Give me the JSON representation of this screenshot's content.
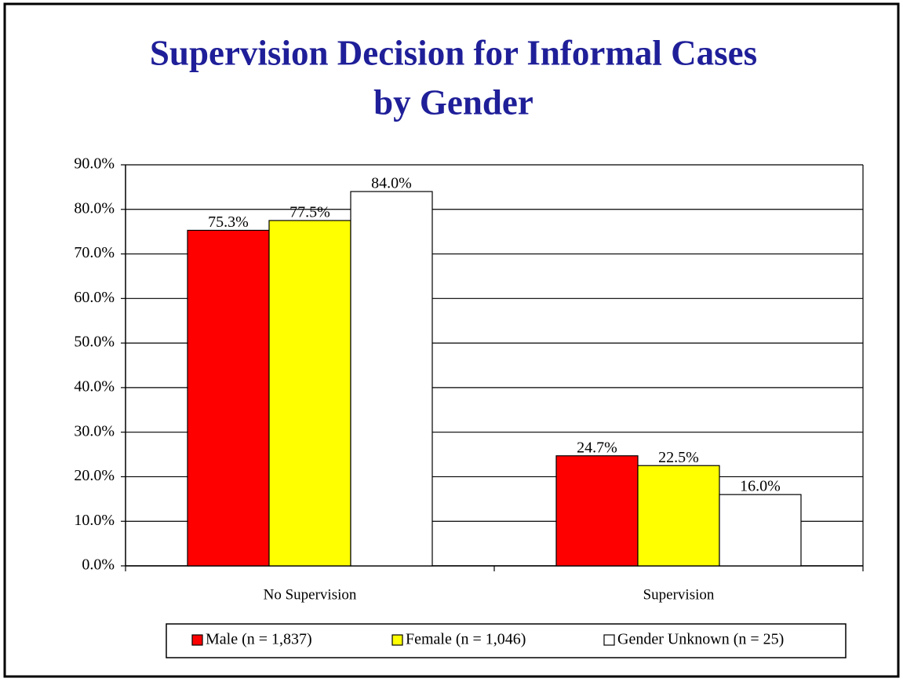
{
  "chart_data": {
    "type": "bar",
    "title": [
      "Supervision Decision for Informal Cases",
      "by Gender"
    ],
    "categories": [
      "No Supervision",
      "Supervision"
    ],
    "series": [
      {
        "name": "Male (n = 1,837)",
        "color": "#ff0000",
        "values": [
          75.3,
          24.7
        ],
        "value_labels": [
          "75.3%",
          "24.7%"
        ]
      },
      {
        "name": "Female (n = 1,046)",
        "color": "#ffff00",
        "values": [
          77.5,
          22.5
        ],
        "value_labels": [
          "77.5%",
          "22.5%"
        ]
      },
      {
        "name": "Gender Unknown (n = 25)",
        "color": "#ffffff",
        "values": [
          84.0,
          16.0
        ],
        "value_labels": [
          "84.0%",
          "16.0%"
        ]
      }
    ],
    "ylim": [
      0,
      90
    ],
    "yticks": [
      {
        "value": 0,
        "label": "0.0%"
      },
      {
        "value": 10,
        "label": "10.0%"
      },
      {
        "value": 20,
        "label": "20.0%"
      },
      {
        "value": 30,
        "label": "30.0%"
      },
      {
        "value": 40,
        "label": "40.0%"
      },
      {
        "value": 50,
        "label": "50.0%"
      },
      {
        "value": 60,
        "label": "60.0%"
      },
      {
        "value": 70,
        "label": "70.0%"
      },
      {
        "value": 80,
        "label": "80.0%"
      },
      {
        "value": 90,
        "label": "90.0%"
      }
    ],
    "grid": true,
    "legend": "bottom"
  }
}
